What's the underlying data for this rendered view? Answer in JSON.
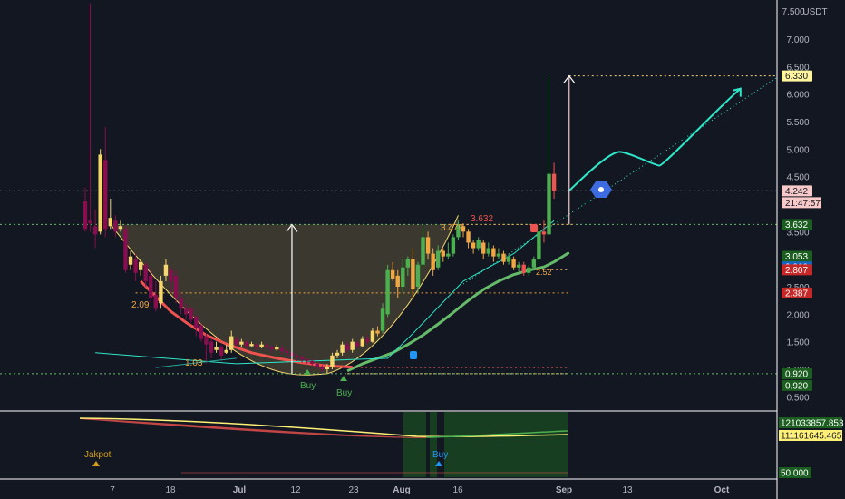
{
  "colors": {
    "bg": "#131722",
    "bull": "#26a69a",
    "bull_bright": "#4caf50",
    "bear": "#ef5350",
    "bear_dark": "#880e4f",
    "text": "#b2b5be",
    "gold": "#f5d76e",
    "green_line": "#66bb6a",
    "red_line": "#ef5350",
    "teal": "#2ee6c8",
    "orange": "#f0a742"
  },
  "price_axis": {
    "currency": "USDT",
    "ticks": [
      "7.500",
      "7.000",
      "6.500",
      "6.000",
      "5.500",
      "5.000",
      "4.500",
      "4.000",
      "3.500",
      "3.000",
      "2.500",
      "2.000",
      "1.500",
      "1.000",
      "0.500"
    ],
    "tick_values": [
      7.5,
      7.0,
      6.5,
      6.0,
      5.5,
      5.0,
      4.5,
      4.0,
      3.5,
      3.0,
      2.5,
      2.0,
      1.5,
      1.0,
      0.5
    ]
  },
  "time_axis": {
    "labels": [
      "7",
      "18",
      "Jul",
      "12",
      "23",
      "Aug",
      "16",
      "Sep",
      "13",
      "Oct"
    ],
    "bold": [
      "Jul",
      "Aug",
      "Sep",
      "Oct"
    ]
  },
  "price_labels": [
    {
      "text": "6.330",
      "value": 6.33,
      "bg": "#fff59d",
      "fg": "#131722"
    },
    {
      "text": "4.242",
      "value": 4.242,
      "bg": "#f8c9c9",
      "fg": "#131722"
    },
    {
      "text": "21:47:57",
      "value": 4.242,
      "bg": "#f8c9c9",
      "fg": "#131722",
      "below": true
    },
    {
      "text": "3.632",
      "value": 3.632,
      "bg": "#1b5e20",
      "fg": "#ffffff"
    },
    {
      "text": "3.053",
      "value": 3.053,
      "bg": "#1b5e20",
      "fg": "#ffffff"
    },
    {
      "text": "2.860",
      "value": 2.86,
      "bg": "#1565c0",
      "fg": "#ffffff"
    },
    {
      "text": "2.807",
      "value": 2.807,
      "bg": "#c62828",
      "fg": "#ffffff"
    },
    {
      "text": "2.387",
      "value": 2.387,
      "bg": "#c62828",
      "fg": "#ffffff"
    },
    {
      "text": "0.920",
      "value": 0.92,
      "bg": "#1b5e20",
      "fg": "#ffffff"
    },
    {
      "text": "0.920",
      "value": 0.92,
      "bg": "#1b5e20",
      "fg": "#ffffff",
      "below": true
    }
  ],
  "annotations": {
    "low_2_09": "2.09",
    "low_1_03": "1.03",
    "level_3_479": "3.479",
    "level_3_632": "3.632",
    "level_2_52": "2.52",
    "buy_1": "Buy",
    "buy_2": "Buy"
  },
  "indicator": {
    "labels": [
      {
        "text": "121033857.853",
        "bg": "#1b5e20",
        "fg": "#ffffff"
      },
      {
        "text": "111161645.465",
        "bg": "#fff176",
        "fg": "#131722"
      },
      {
        "text": "50.000",
        "bg": "#1b5e20",
        "fg": "#ffffff"
      }
    ],
    "jakpot": "Jakpot",
    "buy": "Buy"
  },
  "chart_data": {
    "type": "candlestick",
    "title": "",
    "ylabel": "USDT",
    "ylim": [
      0.3,
      7.65
    ],
    "x_ticks": [
      "7",
      "18",
      "Jul",
      "12",
      "23",
      "Aug",
      "16",
      "Sep",
      "13",
      "Oct"
    ],
    "candles": [
      [
        4.05,
        3.55,
        4.3,
        3.5
      ],
      [
        3.7,
        3.65,
        7.65,
        3.5
      ],
      [
        3.6,
        3.45,
        3.9,
        3.2
      ],
      [
        3.5,
        4.9,
        5.0,
        3.45
      ],
      [
        4.8,
        3.55,
        5.4,
        3.4
      ],
      [
        3.6,
        3.75,
        4.1,
        3.55
      ],
      [
        3.7,
        3.5,
        3.8,
        3.4
      ],
      [
        3.55,
        3.6,
        3.7,
        3.5
      ],
      [
        3.55,
        2.8,
        3.6,
        2.75
      ],
      [
        2.9,
        3.05,
        3.15,
        2.8
      ],
      [
        3.0,
        2.75,
        3.1,
        2.6
      ],
      [
        2.8,
        2.95,
        3.0,
        2.7
      ],
      [
        2.9,
        2.6,
        2.95,
        2.5
      ],
      [
        2.7,
        2.3,
        2.8,
        2.2
      ],
      [
        2.35,
        2.1,
        2.6,
        2.05
      ],
      [
        2.2,
        2.6,
        2.7,
        2.1
      ],
      [
        2.7,
        2.9,
        3.0,
        2.6
      ],
      [
        2.8,
        2.6,
        2.85,
        2.4
      ],
      [
        2.7,
        2.3,
        2.8,
        2.2
      ],
      [
        2.3,
        2.1,
        2.4,
        2.0
      ],
      [
        2.1,
        2.0,
        2.2,
        1.9
      ],
      [
        2.1,
        1.9,
        2.15,
        1.85
      ],
      [
        1.95,
        1.75,
        2.0,
        1.6
      ],
      [
        1.8,
        1.55,
        1.85,
        1.5
      ],
      [
        1.6,
        1.45,
        1.65,
        1.1
      ],
      [
        1.5,
        1.3,
        1.55,
        1.2
      ],
      [
        1.35,
        1.4,
        1.5,
        1.3
      ],
      [
        1.4,
        1.25,
        1.45,
        1.15
      ],
      [
        1.3,
        1.35,
        1.45,
        1.28
      ],
      [
        1.35,
        1.6,
        1.7,
        1.3
      ],
      [
        1.55,
        1.45,
        1.6,
        1.4
      ],
      [
        1.45,
        1.5,
        1.55,
        1.4
      ],
      [
        1.5,
        1.42,
        1.52,
        1.36
      ],
      [
        1.42,
        1.46,
        1.5,
        1.4
      ],
      [
        1.45,
        1.4,
        1.48,
        1.35
      ],
      [
        1.4,
        1.45,
        1.5,
        1.38
      ],
      [
        1.44,
        1.4,
        1.47,
        1.36
      ],
      [
        1.4,
        1.36,
        1.42,
        1.3
      ],
      [
        1.36,
        1.4,
        1.45,
        1.33
      ],
      [
        1.38,
        1.33,
        1.42,
        1.28
      ],
      [
        1.33,
        1.3,
        1.36,
        1.22
      ],
      [
        1.3,
        1.25,
        1.33,
        1.2
      ],
      [
        1.25,
        1.22,
        1.28,
        1.15
      ],
      [
        1.22,
        1.18,
        1.25,
        1.12
      ],
      [
        1.18,
        1.15,
        1.2,
        1.1
      ],
      [
        1.15,
        1.1,
        1.18,
        1.05
      ],
      [
        1.1,
        1.05,
        1.12,
        1.0
      ],
      [
        1.05,
        1.0,
        1.08,
        0.95
      ],
      [
        1.0,
        1.05,
        1.1,
        0.92
      ],
      [
        1.05,
        1.25,
        1.3,
        1.0
      ],
      [
        1.25,
        1.3,
        1.35,
        1.2
      ],
      [
        1.3,
        1.45,
        1.5,
        1.25
      ],
      [
        1.45,
        1.35,
        1.5,
        1.3
      ],
      [
        1.35,
        1.5,
        1.55,
        1.3
      ],
      [
        1.48,
        1.42,
        1.52,
        1.38
      ],
      [
        1.42,
        1.55,
        1.6,
        1.4
      ],
      [
        1.55,
        1.5,
        1.62,
        1.45
      ],
      [
        1.5,
        1.7,
        1.75,
        1.48
      ],
      [
        1.7,
        1.65,
        1.78,
        1.6
      ],
      [
        1.7,
        2.1,
        2.2,
        1.65
      ],
      [
        2.0,
        2.8,
        2.9,
        1.95
      ],
      [
        2.8,
        2.65,
        2.95,
        2.6
      ],
      [
        2.7,
        2.5,
        2.8,
        2.3
      ],
      [
        2.5,
        2.85,
        3.0,
        2.4
      ],
      [
        2.85,
        3.0,
        3.05,
        2.7
      ],
      [
        3.0,
        2.45,
        3.2,
        2.3
      ],
      [
        2.5,
        2.9,
        2.95,
        2.4
      ],
      [
        2.9,
        3.4,
        3.6,
        2.85
      ],
      [
        3.4,
        3.1,
        3.5,
        3.0
      ],
      [
        3.1,
        2.8,
        3.2,
        2.7
      ],
      [
        2.85,
        3.15,
        3.25,
        2.8
      ],
      [
        3.15,
        3.05,
        3.2,
        2.95
      ],
      [
        3.05,
        3.1,
        3.3,
        3.0
      ],
      [
        3.1,
        3.4,
        3.45,
        3.05
      ],
      [
        3.4,
        3.632,
        3.7,
        3.35
      ],
      [
        3.6,
        3.5,
        3.65,
        3.4
      ],
      [
        3.5,
        3.3,
        3.55,
        3.2
      ],
      [
        3.3,
        3.2,
        3.35,
        3.1
      ],
      [
        3.2,
        3.35,
        3.4,
        3.15
      ],
      [
        3.3,
        3.1,
        3.35,
        3.0
      ],
      [
        3.1,
        3.2,
        3.3,
        3.05
      ],
      [
        3.2,
        3.05,
        3.25,
        2.95
      ],
      [
        3.05,
        3.1,
        3.2,
        3.0
      ],
      [
        3.1,
        2.95,
        3.15,
        2.9
      ],
      [
        2.95,
        3.05,
        3.1,
        2.9
      ],
      [
        3.0,
        2.85,
        3.05,
        2.8
      ],
      [
        2.85,
        2.9,
        2.95,
        2.75
      ],
      [
        2.9,
        2.75,
        2.95,
        2.7
      ],
      [
        2.75,
        2.85,
        2.9,
        2.7
      ],
      [
        2.85,
        3.0,
        3.05,
        2.8
      ],
      [
        3.0,
        3.5,
        3.6,
        2.95
      ],
      [
        3.5,
        3.45,
        3.7,
        3.3
      ],
      [
        3.45,
        4.55,
        6.33,
        3.45
      ],
      [
        4.55,
        4.242,
        4.75,
        4.1
      ]
    ],
    "series": [
      {
        "name": "",
        "color": "#66bb6a",
        "points": [
          [
            52,
            0.97
          ],
          [
            55,
            1.1
          ],
          [
            58,
            1.2
          ],
          [
            61,
            1.3
          ],
          [
            64,
            1.45
          ],
          [
            67,
            1.62
          ],
          [
            70,
            1.82
          ],
          [
            73,
            2.03
          ],
          [
            76,
            2.25
          ],
          [
            79,
            2.45
          ],
          [
            82,
            2.6
          ],
          [
            85,
            2.72
          ],
          [
            88,
            2.8
          ],
          [
            91,
            2.86
          ],
          [
            93,
            2.95
          ],
          [
            96,
            3.12
          ]
        ]
      },
      {
        "name": "",
        "color": "#ef5350",
        "points": [
          [
            11,
            2.6
          ],
          [
            14,
            2.32
          ],
          [
            17,
            2.05
          ],
          [
            20,
            1.85
          ],
          [
            24,
            1.62
          ],
          [
            28,
            1.46
          ],
          [
            33,
            1.3
          ],
          [
            38,
            1.2
          ],
          [
            43,
            1.12
          ],
          [
            48,
            1.06
          ],
          [
            53,
            1.04
          ]
        ]
      },
      {
        "name": "",
        "color": "#2ee6c8",
        "points": [
          [
            2,
            1.3
          ],
          [
            30,
            1.1
          ],
          [
            60,
            1.2
          ],
          [
            65,
            1.65
          ],
          [
            75,
            2.6
          ],
          [
            85,
            3.1
          ],
          [
            93,
            3.7
          ]
        ]
      }
    ],
    "levels": [
      3.632,
      3.053,
      2.86,
      2.807,
      2.387,
      1.03,
      0.92,
      6.33,
      4.242
    ],
    "projection": [
      [
        96,
        4.242
      ],
      [
        100,
        4.6
      ],
      [
        106,
        4.95
      ],
      [
        113,
        4.7
      ],
      [
        122,
        5.1
      ],
      [
        130,
        6.1
      ]
    ]
  }
}
